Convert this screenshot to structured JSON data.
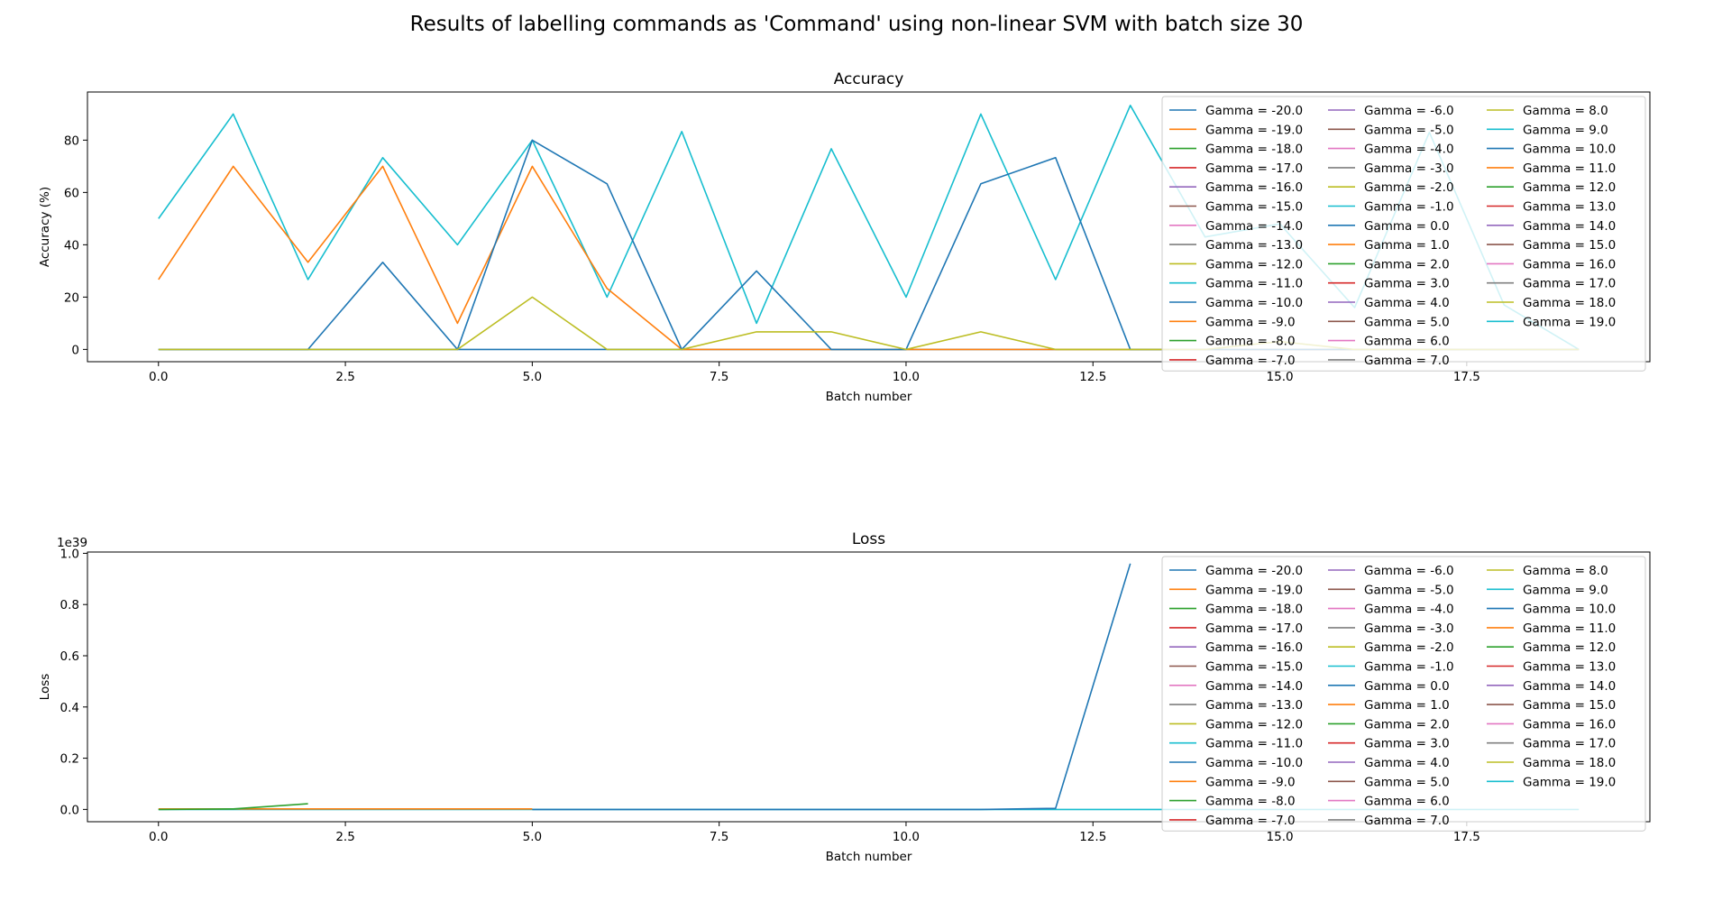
{
  "figure_title": "Results of labelling commands as 'Command' using non-linear SVM with batch size 30",
  "colors": [
    "#1f77b4",
    "#ff7f0e",
    "#2ca02c",
    "#d62728",
    "#9467bd",
    "#8c564b",
    "#e377c2",
    "#7f7f7f",
    "#bcbd22",
    "#17becf"
  ],
  "chart_data": [
    {
      "type": "line",
      "title": "Accuracy",
      "xlabel": "Batch number",
      "ylabel": "Accuracy (%)",
      "xlim": [
        -0.95,
        19.95
      ],
      "ylim": [
        -4.7,
        98.4
      ],
      "xticks": [
        0.0,
        2.5,
        5.0,
        7.5,
        10.0,
        12.5,
        15.0,
        17.5
      ],
      "xtick_labels": [
        "0.0",
        "2.5",
        "5.0",
        "7.5",
        "10.0",
        "12.5",
        "15.0",
        "17.5"
      ],
      "yticks": [
        0,
        20,
        40,
        60,
        80
      ],
      "ytick_labels": [
        "0",
        "20",
        "40",
        "60",
        "80"
      ],
      "y_offset_label": "",
      "legend_loc": "upper right",
      "legend_columns": 3,
      "x": [
        0,
        1,
        2,
        3,
        4,
        5,
        6,
        7,
        8,
        9,
        10,
        11,
        12,
        13,
        14,
        15,
        16,
        17,
        18,
        19
      ],
      "series": [
        {
          "name": "Gamma = -20.0",
          "color": "#1f77b4",
          "values": [
            0,
            0,
            0,
            0,
            0,
            0,
            0,
            0,
            0,
            0,
            0,
            0,
            0,
            0,
            0,
            0,
            0,
            0,
            0,
            0
          ]
        },
        {
          "name": "Gamma = -11.0",
          "color": "#17becf",
          "values": [
            50,
            90,
            26.7,
            73.3,
            40,
            80,
            20,
            83.3,
            10,
            76.7,
            20,
            90,
            26.7,
            93.3,
            43,
            48,
            16,
            83,
            17,
            0
          ]
        },
        {
          "name": "Gamma = -9.0",
          "color": "#ff7f0e",
          "values": [
            26.7,
            70,
            33.3,
            70,
            10,
            70,
            23.3,
            0,
            0,
            0,
            0,
            0,
            0,
            0,
            0,
            0,
            0,
            0,
            0,
            0
          ]
        },
        {
          "name": "Gamma = -10.0",
          "color": "#1f77b4",
          "values": [
            0,
            0,
            0,
            33.3,
            0,
            80,
            63.3,
            0,
            30,
            0,
            0,
            63.3,
            73.3,
            0,
            0,
            0,
            0,
            0,
            0,
            0
          ]
        },
        {
          "name": "Gamma = -12.0",
          "color": "#bcbd22",
          "values": [
            0,
            0,
            0,
            0,
            0,
            20,
            0,
            0,
            6.7,
            6.7,
            0,
            6.7,
            0,
            0,
            0,
            3,
            0,
            0,
            0,
            0
          ]
        }
      ],
      "legend_entries": [
        "Gamma = -20.0",
        "Gamma = -19.0",
        "Gamma = -18.0",
        "Gamma = -17.0",
        "Gamma = -16.0",
        "Gamma = -15.0",
        "Gamma = -14.0",
        "Gamma = -13.0",
        "Gamma = -12.0",
        "Gamma = -11.0",
        "Gamma = -10.0",
        "Gamma = -9.0",
        "Gamma = -8.0",
        "Gamma = -7.0",
        "Gamma = -6.0",
        "Gamma = -5.0",
        "Gamma = -4.0",
        "Gamma = -3.0",
        "Gamma = -2.0",
        "Gamma = -1.0",
        "Gamma = 0.0",
        "Gamma = 1.0",
        "Gamma = 2.0",
        "Gamma = 3.0",
        "Gamma = 4.0",
        "Gamma = 5.0",
        "Gamma = 6.0",
        "Gamma = 7.0",
        "Gamma = 8.0",
        "Gamma = 9.0",
        "Gamma = 10.0",
        "Gamma = 11.0",
        "Gamma = 12.0",
        "Gamma = 13.0",
        "Gamma = 14.0",
        "Gamma = 15.0",
        "Gamma = 16.0",
        "Gamma = 17.0",
        "Gamma = 18.0",
        "Gamma = 19.0"
      ]
    },
    {
      "type": "line",
      "title": "Loss",
      "xlabel": "Batch number",
      "ylabel": "Loss",
      "xlim": [
        -0.95,
        19.95
      ],
      "ylim": [
        -0.048,
        1.005
      ],
      "xticks": [
        0.0,
        2.5,
        5.0,
        7.5,
        10.0,
        12.5,
        15.0,
        17.5
      ],
      "xtick_labels": [
        "0.0",
        "2.5",
        "5.0",
        "7.5",
        "10.0",
        "12.5",
        "15.0",
        "17.5"
      ],
      "yticks": [
        0.0,
        0.2,
        0.4,
        0.6,
        0.8,
        1.0
      ],
      "ytick_labels": [
        "0.0",
        "0.2",
        "0.4",
        "0.6",
        "0.8",
        "1.0"
      ],
      "y_offset_label": "1e39",
      "legend_loc": "upper right",
      "legend_columns": 3,
      "x": [
        0,
        1,
        2,
        3,
        4,
        5,
        6,
        7,
        8,
        9,
        10,
        11,
        12,
        13,
        14,
        15,
        16,
        17,
        18,
        19
      ],
      "series": [
        {
          "name": "Gamma = -11.0",
          "color": "#17becf",
          "values": [
            0,
            0,
            0,
            0,
            0,
            0,
            0,
            0,
            0,
            0,
            0,
            0,
            0,
            0,
            0,
            0,
            0,
            0,
            0,
            0
          ]
        },
        {
          "name": "Gamma = -9.0",
          "color": "#ff7f0e",
          "x": [
            0,
            1,
            2,
            3,
            4,
            5
          ],
          "values": [
            0.002,
            0.002,
            0.002,
            0.002,
            0.002,
            0.002
          ]
        },
        {
          "name": "Gamma = -10.0",
          "color": "#1f77b4",
          "x": [
            5,
            6,
            7,
            8,
            9,
            10,
            11,
            12,
            13
          ],
          "values": [
            0,
            0,
            0,
            0,
            0,
            0,
            0,
            0.004,
            0.96
          ]
        },
        {
          "name": "Gamma = -8.0",
          "color": "#2ca02c",
          "x": [
            0,
            1,
            2
          ],
          "values": [
            0,
            0.002,
            0.022
          ]
        }
      ],
      "legend_entries": [
        "Gamma = -20.0",
        "Gamma = -19.0",
        "Gamma = -18.0",
        "Gamma = -17.0",
        "Gamma = -16.0",
        "Gamma = -15.0",
        "Gamma = -14.0",
        "Gamma = -13.0",
        "Gamma = -12.0",
        "Gamma = -11.0",
        "Gamma = -10.0",
        "Gamma = -9.0",
        "Gamma = -8.0",
        "Gamma = -7.0",
        "Gamma = -6.0",
        "Gamma = -5.0",
        "Gamma = -4.0",
        "Gamma = -3.0",
        "Gamma = -2.0",
        "Gamma = -1.0",
        "Gamma = 0.0",
        "Gamma = 1.0",
        "Gamma = 2.0",
        "Gamma = 3.0",
        "Gamma = 4.0",
        "Gamma = 5.0",
        "Gamma = 6.0",
        "Gamma = 7.0",
        "Gamma = 8.0",
        "Gamma = 9.0",
        "Gamma = 10.0",
        "Gamma = 11.0",
        "Gamma = 12.0",
        "Gamma = 13.0",
        "Gamma = 14.0",
        "Gamma = 15.0",
        "Gamma = 16.0",
        "Gamma = 17.0",
        "Gamma = 18.0",
        "Gamma = 19.0"
      ]
    }
  ]
}
